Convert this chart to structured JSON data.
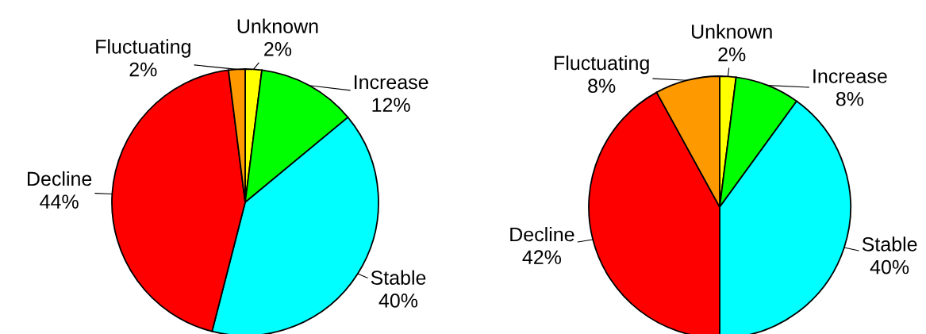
{
  "chart_data": [
    {
      "type": "pie",
      "categories": [
        "Unknown",
        "Increase",
        "Stable",
        "Decline",
        "Fluctuating"
      ],
      "values": [
        2,
        12,
        40,
        44,
        2
      ],
      "value_labels": [
        "2%",
        "12%",
        "40%",
        "44%",
        "2%"
      ],
      "colors": [
        "#ffff00",
        "#00ff00",
        "#00ffff",
        "#ff0000",
        "#ff9900"
      ]
    },
    {
      "type": "pie",
      "categories": [
        "Unknown",
        "Increase",
        "Stable",
        "Decline",
        "Fluctuating"
      ],
      "values": [
        2,
        8,
        40,
        42,
        8
      ],
      "value_labels": [
        "2%",
        "8%",
        "40%",
        "42%",
        "8%"
      ],
      "colors": [
        "#ffff00",
        "#00ff00",
        "#00ffff",
        "#ff0000",
        "#ff9900"
      ]
    }
  ]
}
